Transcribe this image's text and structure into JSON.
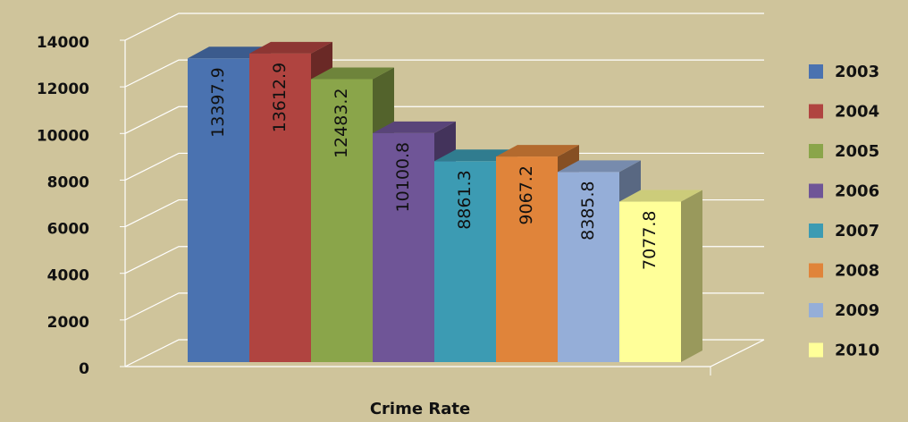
{
  "chart_data": {
    "type": "bar3d",
    "categories": [
      "Crime Rate"
    ],
    "series": [
      {
        "name": "2003",
        "color": "#4a72b0",
        "values": [
          13397.9
        ]
      },
      {
        "name": "2004",
        "color": "#b04440",
        "values": [
          13612.9
        ]
      },
      {
        "name": "2005",
        "color": "#8aa54a",
        "values": [
          12483.2
        ]
      },
      {
        "name": "2006",
        "color": "#6f5597",
        "values": [
          10100.8
        ]
      },
      {
        "name": "2007",
        "color": "#3c9bb3",
        "values": [
          8861.3
        ]
      },
      {
        "name": "2008",
        "color": "#e0843a",
        "values": [
          9067.2
        ]
      },
      {
        "name": "2009",
        "color": "#95aed8",
        "values": [
          8385.8
        ]
      },
      {
        "name": "2010",
        "color": "#ffff99",
        "values": [
          7077.8
        ]
      }
    ],
    "ylim": [
      0,
      14000
    ],
    "yticks": [
      0,
      2000,
      4000,
      6000,
      8000,
      10000,
      12000,
      14000
    ],
    "grid": true,
    "legend": "right"
  }
}
